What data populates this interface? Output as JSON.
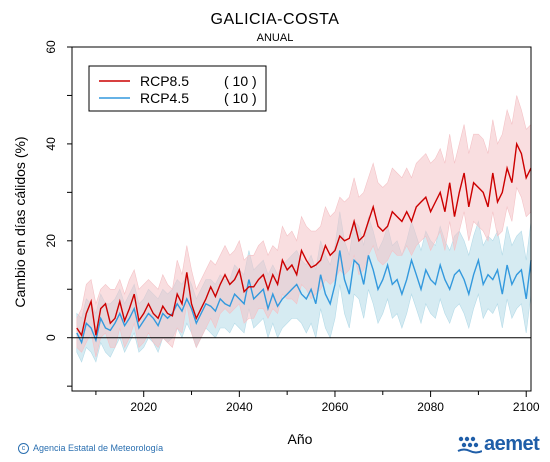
{
  "header": {
    "title": "GALICIA-COSTA",
    "subtitle": "ANUAL"
  },
  "footer": {
    "credit": "Agencia Estatal de Meteorología",
    "logo_text": "aemet"
  },
  "colors": {
    "rcp85": "#cc0000",
    "rcp85_band": "#f4c2c6",
    "rcp45": "#3399dd",
    "rcp45_band": "#b5dbe8"
  },
  "chart_data": {
    "type": "line",
    "title": "GALICIA-COSTA",
    "subtitle": "ANUAL",
    "xlabel": "Año",
    "ylabel": "Cambio en días cálidos (%)",
    "xlim": [
      2005,
      2101
    ],
    "ylim": [
      -11,
      60
    ],
    "xticks": [
      2020,
      2040,
      2060,
      2080,
      2100
    ],
    "yticks": [
      0,
      20,
      40,
      60
    ],
    "zero_line": true,
    "legend_position": "top-left",
    "series": [
      {
        "name": "RCP8.5",
        "count_label": "( 10 )",
        "x_start": 2006,
        "values": [
          2,
          0.5,
          5,
          7.5,
          0.5,
          6,
          7,
          3,
          4,
          7.5,
          3.5,
          6,
          9,
          3.5,
          5,
          7,
          5,
          4,
          6.5,
          5,
          4.5,
          9,
          7,
          13.5,
          7,
          4,
          6,
          8,
          10.5,
          8.5,
          11,
          13,
          11,
          12,
          14,
          9.5,
          10.5,
          10.5,
          12,
          13,
          10,
          13,
          11,
          16,
          14,
          15,
          13,
          18,
          16,
          14.5,
          15,
          16,
          19,
          17,
          18,
          21,
          20,
          20.5,
          24,
          20,
          21,
          24,
          27,
          23,
          22,
          23,
          26,
          25,
          24,
          26,
          24,
          27,
          28,
          29,
          26,
          28,
          30,
          26,
          32,
          25,
          30,
          34,
          27,
          32,
          31,
          30,
          27,
          34,
          28,
          30,
          35,
          32,
          40,
          38,
          33,
          35
        ],
        "upper": [
          4,
          6,
          11,
          12,
          7,
          10,
          11,
          10,
          10,
          12,
          9,
          12,
          14,
          10,
          11,
          12,
          11,
          10,
          13,
          11,
          10,
          16,
          13,
          19,
          14,
          10,
          12,
          14,
          16,
          15,
          17,
          19,
          17,
          18,
          20,
          16,
          17,
          17,
          19,
          20,
          17,
          19,
          18,
          23,
          21,
          22,
          20,
          25,
          23,
          22,
          22,
          23,
          27,
          25,
          26,
          29,
          28,
          29,
          33,
          29,
          30,
          33,
          36,
          32,
          31,
          32,
          35,
          34,
          33,
          35,
          33,
          36,
          37,
          38,
          36,
          37,
          39,
          36,
          42,
          36,
          40,
          44,
          38,
          42,
          42,
          41,
          38,
          45,
          40,
          42,
          47,
          44,
          50,
          47,
          43,
          44
        ],
        "lower": [
          -2,
          -3,
          -1,
          1,
          -4,
          0,
          1,
          -2,
          -2,
          2,
          -2,
          0,
          3,
          -2,
          -1,
          1,
          -1,
          -2,
          0,
          -1,
          -2,
          2,
          1,
          7,
          1,
          -2,
          0,
          2,
          4,
          2,
          5,
          6,
          5,
          6,
          7,
          3,
          4,
          4,
          6,
          6,
          4,
          6,
          5,
          9,
          8,
          8,
          7,
          11,
          10,
          8,
          9,
          10,
          12,
          11,
          12,
          14,
          13,
          14,
          17,
          13,
          14,
          17,
          19,
          16,
          15,
          16,
          18,
          17,
          17,
          19,
          17,
          19,
          20,
          21,
          18,
          20,
          22,
          18,
          24,
          18,
          22,
          26,
          20,
          24,
          23,
          22,
          20,
          26,
          21,
          22,
          27,
          24,
          31,
          29,
          25,
          26
        ]
      },
      {
        "name": "RCP4.5",
        "count_label": "( 10 )",
        "x_start": 2006,
        "values": [
          1,
          -1,
          3,
          2,
          -0.5,
          4,
          2,
          1.5,
          3,
          5,
          2.5,
          4,
          6,
          2,
          3.5,
          5,
          4,
          2.5,
          5,
          4,
          5,
          7,
          5.5,
          8,
          6,
          3,
          5,
          7,
          6.5,
          5.5,
          8,
          7,
          6.5,
          9,
          8,
          7,
          12,
          8,
          9,
          10,
          6,
          9,
          6.5,
          8,
          9,
          10,
          11,
          9,
          8,
          10,
          7,
          13,
          9,
          7,
          11,
          18,
          12,
          9,
          16,
          15,
          11,
          17,
          14,
          10,
          12,
          15,
          11,
          12,
          9,
          12,
          16,
          13,
          10,
          14,
          12,
          11,
          15,
          12,
          10,
          13,
          14,
          12,
          9,
          13,
          16,
          11,
          13,
          12,
          14,
          9,
          15,
          11,
          13,
          14,
          8,
          16
        ],
        "upper": [
          5,
          4,
          8,
          7,
          5,
          9,
          7,
          7,
          8,
          10,
          7,
          9,
          11,
          7,
          8,
          10,
          9,
          8,
          10,
          9,
          10,
          12,
          11,
          13,
          11,
          8,
          10,
          12,
          12,
          11,
          13,
          12,
          12,
          15,
          14,
          13,
          18,
          14,
          15,
          16,
          13,
          15,
          13,
          15,
          16,
          17,
          18,
          16,
          15,
          17,
          14,
          20,
          17,
          15,
          19,
          26,
          20,
          17,
          24,
          23,
          19,
          25,
          22,
          18,
          20,
          23,
          19,
          20,
          17,
          20,
          24,
          21,
          18,
          22,
          20,
          19,
          23,
          20,
          18,
          21,
          22,
          20,
          17,
          21,
          24,
          19,
          21,
          20,
          22,
          17,
          23,
          19,
          21,
          22,
          16,
          24
        ],
        "lower": [
          -3,
          -5,
          -2,
          -3,
          -5,
          -1,
          -3,
          -4,
          -2,
          0,
          -3,
          -1,
          1,
          -3,
          -2,
          0,
          -1,
          -3,
          0,
          -1,
          0,
          2,
          0,
          3,
          1,
          -2,
          0,
          2,
          1,
          0,
          2,
          2,
          1,
          3,
          2,
          1,
          6,
          2,
          3,
          4,
          0,
          3,
          0,
          2,
          3,
          4,
          4,
          3,
          1,
          3,
          0,
          6,
          2,
          0,
          4,
          11,
          5,
          2,
          9,
          8,
          4,
          10,
          7,
          3,
          5,
          8,
          4,
          5,
          2,
          5,
          9,
          6,
          3,
          7,
          5,
          4,
          8,
          5,
          3,
          6,
          7,
          5,
          2,
          6,
          9,
          4,
          6,
          5,
          7,
          2,
          8,
          4,
          6,
          7,
          1,
          9
        ]
      }
    ]
  }
}
